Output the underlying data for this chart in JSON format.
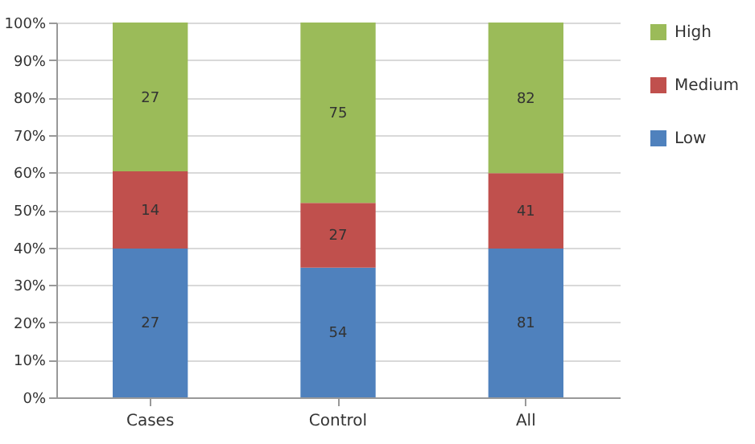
{
  "chart_data": {
    "type": "bar",
    "stacked": true,
    "categories": [
      "Cases",
      "Control",
      "All"
    ],
    "series": [
      {
        "name": "Low",
        "color": "#4f81bd",
        "values": [
          39.7,
          34.6,
          39.7
        ]
      },
      {
        "name": "Medium",
        "color": "#c0504d",
        "values": [
          20.6,
          17.3,
          20.1
        ]
      },
      {
        "name": "High",
        "color": "#9bbb59",
        "values": [
          39.7,
          48.1,
          40.2
        ]
      }
    ],
    "annotations": [
      "27",
      "54",
      "81",
      "14",
      "27",
      "41",
      "27",
      "75",
      "82"
    ],
    "ylim": [
      0,
      100
    ],
    "yticks": [
      {
        "value": 0,
        "label": "0%"
      },
      {
        "value": 10,
        "label": "10%"
      },
      {
        "value": 20,
        "label": "20%"
      },
      {
        "value": 30,
        "label": "30%"
      },
      {
        "value": 40,
        "label": "40%"
      },
      {
        "value": 50,
        "label": "50%"
      },
      {
        "value": 60,
        "label": "60%"
      },
      {
        "value": 70,
        "label": "70%"
      },
      {
        "value": 80,
        "label": "80%"
      },
      {
        "value": 90,
        "label": "90%"
      },
      {
        "value": 100,
        "label": "100%"
      }
    ],
    "grid": "y",
    "legend": "right"
  }
}
